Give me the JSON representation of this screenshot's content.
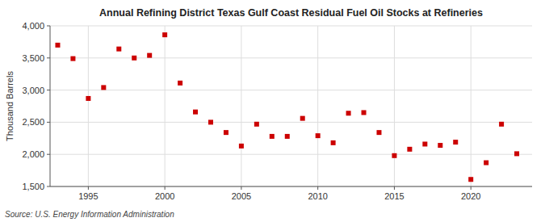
{
  "chart_data": {
    "type": "scatter",
    "title": "Annual Refining District Texas Gulf Coast Residual Fuel Oil Stocks at Refineries",
    "ylabel": "Thousand Barrels",
    "source": "Source: U.S. Energy Information Administration",
    "color": "#cc0000",
    "marker": "square",
    "grid": true,
    "xlim": [
      1992.5,
      2024
    ],
    "xticks": [
      1995,
      2000,
      2005,
      2010,
      2015,
      2020
    ],
    "ylim": [
      1500,
      4000
    ],
    "yticks": [
      {
        "value": 1500,
        "label": "1,500"
      },
      {
        "value": 2000,
        "label": "2,000"
      },
      {
        "value": 2500,
        "label": "2,500"
      },
      {
        "value": 3000,
        "label": "3,000"
      },
      {
        "value": 3500,
        "label": "3,500"
      },
      {
        "value": 4000,
        "label": "4,000"
      }
    ],
    "x": [
      1993,
      1994,
      1995,
      1996,
      1997,
      1998,
      1999,
      2000,
      2001,
      2002,
      2003,
      2004,
      2005,
      2006,
      2007,
      2008,
      2009,
      2010,
      2011,
      2012,
      2013,
      2014,
      2015,
      2016,
      2017,
      2018,
      2019,
      2020,
      2021,
      2022,
      2023
    ],
    "values": [
      3700,
      3490,
      2870,
      3040,
      3640,
      3500,
      3540,
      3860,
      3110,
      2660,
      2500,
      2340,
      2130,
      2470,
      2280,
      2280,
      2560,
      2290,
      2180,
      2640,
      2650,
      2340,
      1980,
      2080,
      2160,
      2140,
      2190,
      1610,
      1870,
      2470,
      2010
    ]
  }
}
